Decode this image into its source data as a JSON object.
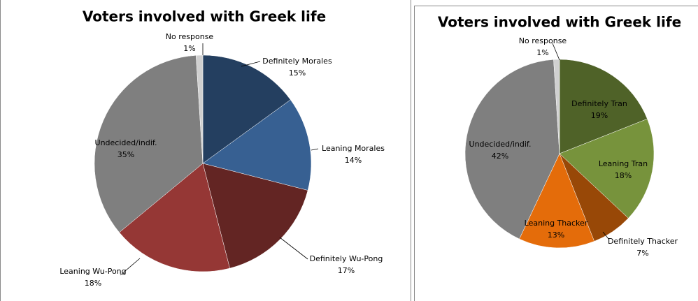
{
  "chart_data": [
    {
      "type": "pie",
      "title": "Voters involved with Greek life",
      "categories": [
        "Definitely Morales",
        "Leaning Morales",
        "Definitely Wu-Pong",
        "Leaning Wu-Pong",
        "Undecided/indif.",
        "No response"
      ],
      "values": [
        15,
        14,
        17,
        18,
        35,
        1
      ],
      "value_labels": [
        "15%",
        "14%",
        "17%",
        "18%",
        "35%",
        "1%"
      ],
      "colors": [
        "#243f60",
        "#376092",
        "#632523",
        "#953735",
        "#7f7f7f",
        "#d0d0d0"
      ]
    },
    {
      "type": "pie",
      "title": "Voters involved with Greek life",
      "categories": [
        "Definitely Tran",
        "Leaning Tran",
        "Definitely Thacker",
        "Leaning Thacker",
        "Undecided/indif.",
        "No response"
      ],
      "values": [
        19,
        18,
        7,
        13,
        42,
        1
      ],
      "value_labels": [
        "19%",
        "18%",
        "7%",
        "13%",
        "42%",
        "1%"
      ],
      "colors": [
        "#4f6228",
        "#77933c",
        "#984807",
        "#e46c0a",
        "#7f7f7f",
        "#d0d0d0"
      ]
    }
  ]
}
